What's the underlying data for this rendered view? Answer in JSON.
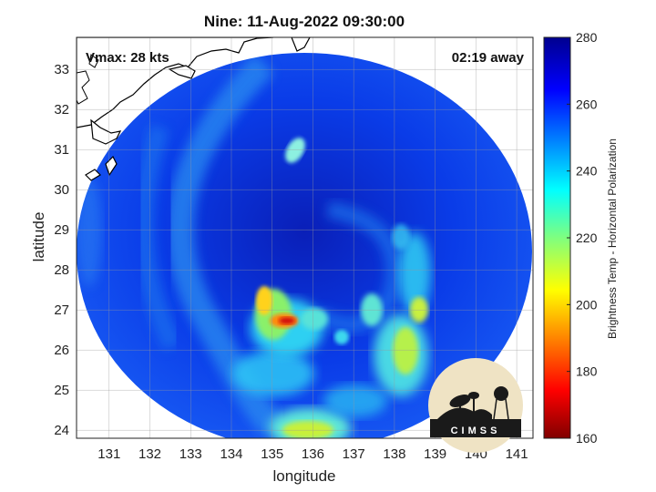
{
  "title": "Nine: 11-Aug-2022 09:30:00",
  "overlay": {
    "vmax": "Vmax: 28 kts",
    "time_away": "02:19 away"
  },
  "axes": {
    "xlabel": "longitude",
    "ylabel": "latitude",
    "xticks": [
      "131",
      "132",
      "133",
      "134",
      "135",
      "136",
      "137",
      "138",
      "139",
      "140",
      "141"
    ],
    "yticks": [
      "24",
      "25",
      "26",
      "27",
      "28",
      "29",
      "30",
      "31",
      "32",
      "33"
    ]
  },
  "colorbar": {
    "label": "Brightness Temp - Horizontal Polarization",
    "ticks": [
      "160",
      "180",
      "200",
      "220",
      "240",
      "260",
      "280"
    ]
  },
  "logo": {
    "text": "CIMSS"
  },
  "chart_data": {
    "type": "heatmap",
    "title": "Nine: 11-Aug-2022 09:30:00",
    "xlabel": "longitude",
    "ylabel": "latitude",
    "xlim": [
      130.2,
      141.4
    ],
    "ylim": [
      23.8,
      33.8
    ],
    "clim": [
      160,
      280
    ],
    "colormap": "jet",
    "colorbar_label": "Brightness Temp - Horizontal Polarization",
    "background_value": 268,
    "swath": {
      "center_lon": 135.8,
      "center_lat": 28.5,
      "note": "circular passive-microwave swath"
    },
    "features": [
      {
        "lon": 135.2,
        "lat": 26.8,
        "value": 180,
        "desc": "intense convection core (red)"
      },
      {
        "lon": 135.0,
        "lat": 27.3,
        "value": 205,
        "desc": "yellow band"
      },
      {
        "lon": 138.7,
        "lat": 26.8,
        "value": 205,
        "desc": "eastern rainband"
      },
      {
        "lon": 138.2,
        "lat": 25.8,
        "value": 215,
        "desc": "eastern rainband"
      },
      {
        "lon": 136.0,
        "lat": 24.2,
        "value": 215,
        "desc": "southern rainband"
      },
      {
        "lon": 135.6,
        "lat": 31.1,
        "value": 240,
        "desc": "northern streak"
      },
      {
        "lon": 134.0,
        "lat": 29.5,
        "value": 250,
        "desc": "western curved band"
      }
    ]
  }
}
